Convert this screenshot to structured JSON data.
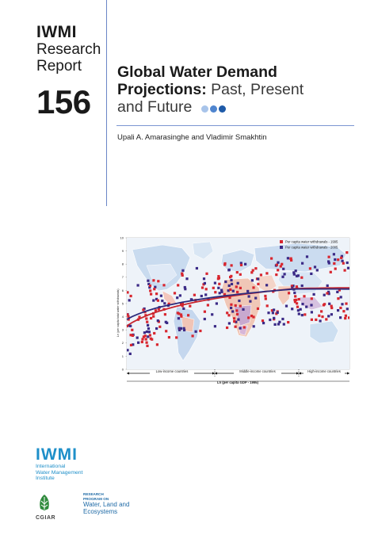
{
  "series": {
    "brand": "IWMI",
    "line1": "Research",
    "line2": "Report",
    "number": "156"
  },
  "title": {
    "bold1": "Global Water Demand",
    "bold2": "Projections:",
    "light2": " Past, Present",
    "light3": "and Future",
    "dot_colors": [
      "#a8c4ea",
      "#4f85cf",
      "#1e5aa8"
    ]
  },
  "authors": "Upali A. Amarasinghe and Vladimir Smakhtin",
  "figure": {
    "legend": [
      "Per capita water withdrawals - 1995",
      "Per capita water withdrawals - 2005"
    ],
    "ylabel": "Ln (per capita total water withdrawals)",
    "xlabel": "Ln (per capita GDP - 1995)",
    "yticks": [
      "10",
      "9",
      "8",
      "7",
      "6",
      "5",
      "4",
      "3",
      "2",
      "1",
      "0"
    ],
    "bands": [
      "Low-income countries",
      "Middle-income countries",
      "High-income countries"
    ],
    "colors": {
      "s1995": "#d8262f",
      "s2005": "#3b2a86",
      "curve1995": "#c8262e",
      "curve2005": "#2d2b7c"
    }
  },
  "iwmi": {
    "mark": "IWMI",
    "line1": "International",
    "line2": "Water Management",
    "line3": "Institute"
  },
  "cgiar": {
    "name": "CGIAR",
    "program1": "RESEARCH",
    "program2": "PROGRAM ON",
    "wle1": "Water, Land and",
    "wle2": "Ecosystems"
  }
}
